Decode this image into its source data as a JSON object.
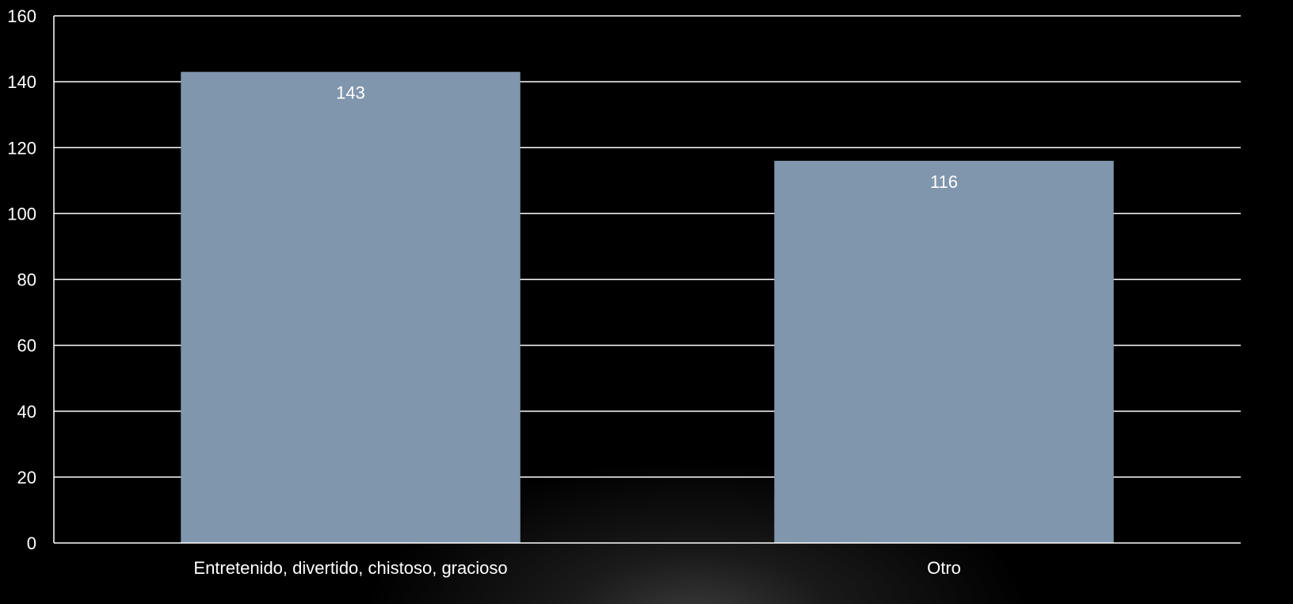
{
  "chart_data": {
    "type": "bar",
    "title": "",
    "xlabel": "",
    "ylabel": "",
    "categories": [
      "Entretenido, divertido, chistoso, gracioso",
      "Otro"
    ],
    "values": [
      143,
      116
    ],
    "data_labels": [
      "143",
      "116"
    ],
    "ylim": [
      0,
      160
    ],
    "yticks": [
      0,
      20,
      40,
      60,
      80,
      100,
      120,
      140,
      160
    ],
    "grid": true,
    "legend": "none",
    "colors": {
      "background": "#000000",
      "bar": "#8096ad",
      "grid": "#ffffff",
      "text": "#ffffff"
    }
  }
}
